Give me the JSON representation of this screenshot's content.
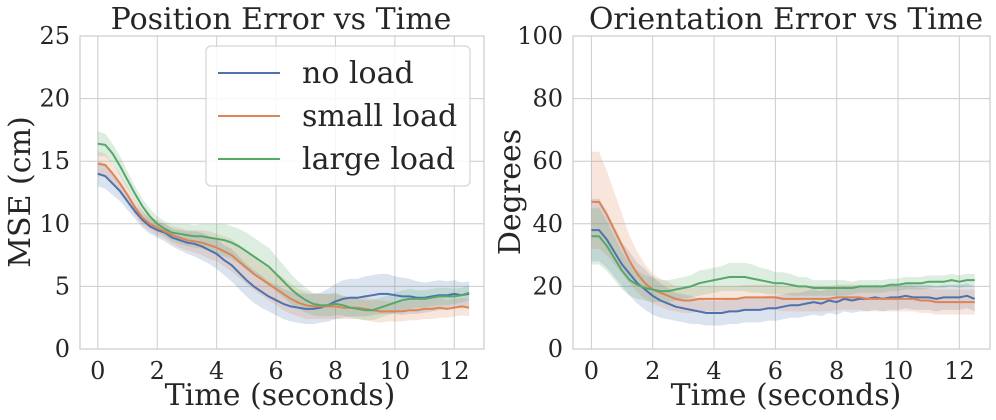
{
  "chart_data": [
    {
      "type": "line",
      "title": "Position Error vs Time",
      "xlabel": "Time (seconds)",
      "ylabel": "MSE (cm)",
      "xlim": [
        -0.6,
        13.0
      ],
      "ylim": [
        0,
        25
      ],
      "xticks": [
        0,
        2,
        4,
        6,
        8,
        10,
        12
      ],
      "yticks": [
        0,
        5,
        10,
        15,
        20,
        25
      ],
      "grid": true,
      "legend": "top-right",
      "x": [
        0,
        0.25,
        0.5,
        0.75,
        1,
        1.25,
        1.5,
        1.75,
        2,
        2.25,
        2.5,
        2.75,
        3,
        3.25,
        3.5,
        3.75,
        4,
        4.25,
        4.5,
        4.75,
        5,
        5.25,
        5.5,
        5.75,
        6,
        6.25,
        6.5,
        6.75,
        7,
        7.25,
        7.5,
        7.75,
        8,
        8.25,
        8.5,
        8.75,
        9,
        9.25,
        9.5,
        9.75,
        10,
        10.25,
        10.5,
        10.75,
        11,
        11.25,
        11.5,
        11.75,
        12,
        12.25,
        12.5
      ],
      "series": [
        {
          "name": "no load",
          "color": "#4c72b0",
          "values": [
            14.0,
            13.8,
            13.2,
            12.6,
            11.8,
            11.0,
            10.3,
            9.8,
            9.5,
            9.3,
            8.9,
            8.7,
            8.5,
            8.4,
            8.2,
            7.9,
            7.6,
            7.1,
            6.7,
            6.1,
            5.5,
            5.0,
            4.6,
            4.2,
            3.9,
            3.6,
            3.4,
            3.3,
            3.2,
            3.2,
            3.3,
            3.5,
            3.8,
            4.0,
            4.1,
            4.1,
            4.2,
            4.3,
            4.4,
            4.4,
            4.3,
            4.2,
            4.2,
            4.1,
            4.1,
            4.2,
            4.3,
            4.3,
            4.4,
            4.3,
            4.4
          ],
          "lower": [
            13.0,
            12.8,
            12.3,
            11.8,
            11.1,
            10.4,
            9.7,
            9.2,
            8.9,
            8.6,
            8.2,
            7.9,
            7.6,
            7.4,
            7.1,
            6.8,
            6.4,
            5.9,
            5.4,
            4.8,
            4.2,
            3.7,
            3.3,
            3.0,
            2.7,
            2.4,
            2.2,
            2.1,
            2.0,
            2.0,
            2.1,
            2.2,
            2.4,
            2.5,
            2.6,
            2.6,
            2.6,
            2.7,
            2.8,
            2.8,
            2.8,
            2.7,
            2.8,
            2.8,
            2.9,
            3.0,
            3.1,
            3.2,
            3.3,
            3.3,
            3.4
          ],
          "upper": [
            15.0,
            14.8,
            14.1,
            13.4,
            12.5,
            11.6,
            10.9,
            10.4,
            10.1,
            10.0,
            9.6,
            9.5,
            9.4,
            9.4,
            9.3,
            9.0,
            8.8,
            8.3,
            8.0,
            7.4,
            6.8,
            6.3,
            5.9,
            5.4,
            5.1,
            4.8,
            4.6,
            4.5,
            4.4,
            4.4,
            4.5,
            4.8,
            5.2,
            5.5,
            5.6,
            5.6,
            5.8,
            5.9,
            6.0,
            6.0,
            5.8,
            5.7,
            5.6,
            5.4,
            5.3,
            5.4,
            5.5,
            5.4,
            5.5,
            5.3,
            5.4
          ]
        },
        {
          "name": "small load",
          "color": "#dd8452",
          "values": [
            14.8,
            14.7,
            14.0,
            13.2,
            12.3,
            11.3,
            10.5,
            10.0,
            9.7,
            9.4,
            9.1,
            8.9,
            8.7,
            8.6,
            8.5,
            8.3,
            8.1,
            7.8,
            7.5,
            7.0,
            6.5,
            6.0,
            5.6,
            5.2,
            4.8,
            4.4,
            4.0,
            3.7,
            3.5,
            3.4,
            3.4,
            3.4,
            3.4,
            3.3,
            3.3,
            3.3,
            3.2,
            3.1,
            3.0,
            3.0,
            3.0,
            3.0,
            3.1,
            3.1,
            3.2,
            3.2,
            3.3,
            3.2,
            3.3,
            3.4,
            3.3
          ],
          "lower": [
            13.8,
            13.8,
            13.2,
            12.4,
            11.6,
            10.7,
            9.9,
            9.4,
            9.1,
            8.8,
            8.4,
            8.1,
            7.9,
            7.7,
            7.5,
            7.2,
            7.0,
            6.6,
            6.2,
            5.7,
            5.2,
            4.7,
            4.3,
            3.9,
            3.5,
            3.1,
            2.8,
            2.6,
            2.4,
            2.4,
            2.4,
            2.4,
            2.4,
            2.4,
            2.4,
            2.4,
            2.3,
            2.2,
            2.1,
            2.2,
            2.2,
            2.2,
            2.3,
            2.3,
            2.4,
            2.4,
            2.5,
            2.5,
            2.6,
            2.7,
            2.6
          ],
          "upper": [
            15.8,
            15.6,
            14.8,
            14.0,
            13.0,
            11.9,
            11.1,
            10.6,
            10.3,
            10.0,
            9.8,
            9.7,
            9.5,
            9.5,
            9.5,
            9.4,
            9.2,
            9.0,
            8.8,
            8.3,
            7.8,
            7.3,
            6.9,
            6.5,
            6.1,
            5.7,
            5.2,
            4.8,
            4.6,
            4.4,
            4.4,
            4.4,
            4.4,
            4.2,
            4.2,
            4.2,
            4.1,
            4.0,
            3.9,
            3.8,
            3.8,
            3.8,
            3.9,
            3.9,
            4.0,
            4.0,
            4.1,
            3.9,
            4.0,
            4.1,
            4.0
          ]
        },
        {
          "name": "large load",
          "color": "#55a868",
          "values": [
            16.4,
            16.3,
            15.6,
            14.6,
            13.5,
            12.4,
            11.4,
            10.6,
            10.0,
            9.6,
            9.3,
            9.2,
            9.1,
            9.0,
            9.0,
            8.9,
            8.8,
            8.7,
            8.5,
            8.2,
            7.8,
            7.4,
            7.0,
            6.6,
            6.0,
            5.4,
            4.8,
            4.3,
            3.9,
            3.6,
            3.5,
            3.5,
            3.6,
            3.5,
            3.3,
            3.2,
            3.1,
            3.1,
            3.3,
            3.5,
            3.7,
            3.9,
            4.0,
            4.0,
            4.0,
            4.1,
            4.2,
            4.2,
            4.2,
            4.3,
            4.5
          ],
          "lower": [
            15.4,
            15.4,
            14.8,
            13.8,
            12.8,
            11.8,
            10.8,
            10.0,
            9.4,
            9.0,
            8.6,
            8.4,
            8.2,
            8.1,
            8.0,
            7.8,
            7.6,
            7.4,
            7.2,
            6.8,
            6.3,
            5.9,
            5.5,
            5.1,
            4.6,
            4.1,
            3.6,
            3.2,
            2.9,
            2.7,
            2.6,
            2.6,
            2.7,
            2.7,
            2.5,
            2.4,
            2.3,
            2.3,
            2.5,
            2.7,
            2.9,
            3.1,
            3.2,
            3.3,
            3.3,
            3.4,
            3.5,
            3.5,
            3.6,
            3.7,
            3.9
          ],
          "upper": [
            17.4,
            17.2,
            16.4,
            15.4,
            14.2,
            13.0,
            12.0,
            11.2,
            10.6,
            10.2,
            10.0,
            10.0,
            10.0,
            9.9,
            10.0,
            10.0,
            10.0,
            10.0,
            9.8,
            9.6,
            9.3,
            8.9,
            8.5,
            8.1,
            7.4,
            6.7,
            6.0,
            5.4,
            4.9,
            4.5,
            4.4,
            4.4,
            4.5,
            4.3,
            4.1,
            4.0,
            3.9,
            3.9,
            4.1,
            4.3,
            4.5,
            4.7,
            4.8,
            4.7,
            4.7,
            4.8,
            4.9,
            4.9,
            4.8,
            4.9,
            5.1
          ]
        }
      ]
    },
    {
      "type": "line",
      "title": "Orientation Error vs Time",
      "xlabel": "Time (seconds)",
      "ylabel": "Degrees",
      "xlim": [
        -0.6,
        13.0
      ],
      "ylim": [
        0,
        100
      ],
      "xticks": [
        0,
        2,
        4,
        6,
        8,
        10,
        12
      ],
      "yticks": [
        0,
        20,
        40,
        60,
        80,
        100
      ],
      "grid": true,
      "x": [
        0,
        0.25,
        0.5,
        0.75,
        1,
        1.25,
        1.5,
        1.75,
        2,
        2.25,
        2.5,
        2.75,
        3,
        3.25,
        3.5,
        3.75,
        4,
        4.25,
        4.5,
        4.75,
        5,
        5.25,
        5.5,
        5.75,
        6,
        6.25,
        6.5,
        6.75,
        7,
        7.25,
        7.5,
        7.75,
        8,
        8.25,
        8.5,
        8.75,
        9,
        9.25,
        9.5,
        9.75,
        10,
        10.25,
        10.5,
        10.75,
        11,
        11.25,
        11.5,
        11.75,
        12,
        12.25,
        12.5
      ],
      "series": [
        {
          "name": "no load",
          "color": "#4c72b0",
          "values": [
            38,
            38,
            35,
            31,
            27,
            24,
            21,
            19,
            17,
            15.5,
            14.5,
            13.5,
            13,
            12.5,
            12,
            11.5,
            11.5,
            11.5,
            12,
            12,
            12.5,
            12.5,
            12.5,
            13,
            13,
            13.5,
            14,
            14,
            14.5,
            15,
            14.5,
            15.5,
            15,
            16,
            15.5,
            16,
            16,
            16.5,
            16,
            16.5,
            16.5,
            17,
            16.5,
            16.5,
            16.5,
            16,
            16.5,
            16.5,
            16.5,
            17,
            16
          ],
          "lower": [
            28,
            28,
            26,
            23,
            20,
            17,
            14.5,
            12.5,
            11,
            10,
            9.5,
            9,
            8.5,
            8,
            8,
            7.5,
            7.5,
            7.5,
            8,
            8,
            8.5,
            8.5,
            8.5,
            9,
            9,
            9.5,
            10,
            10,
            10.5,
            11,
            10.5,
            11.5,
            11,
            12,
            11.5,
            12,
            12,
            12.5,
            12,
            12.5,
            12.5,
            13,
            12.5,
            12.5,
            12.5,
            12,
            12.5,
            12.5,
            12.5,
            13,
            12
          ],
          "upper": [
            48,
            48,
            44,
            39,
            34,
            31,
            27.5,
            25.5,
            23,
            21,
            19.5,
            18,
            17.5,
            17,
            16,
            15.5,
            15.5,
            15.5,
            16,
            16,
            16.5,
            16.5,
            16.5,
            17,
            17,
            17.5,
            18,
            18,
            18.5,
            19,
            18.5,
            19.5,
            19,
            20,
            19.5,
            20,
            20,
            20.5,
            20,
            20.5,
            20.5,
            21,
            20.5,
            20.5,
            20.5,
            20,
            20.5,
            20.5,
            20.5,
            21,
            20
          ]
        },
        {
          "name": "small load",
          "color": "#dd8452",
          "values": [
            47,
            47,
            43,
            38,
            33,
            28,
            24,
            21,
            19,
            18,
            17,
            16,
            15.5,
            15.5,
            16,
            16,
            16,
            16,
            16,
            16,
            16.5,
            16.5,
            16.5,
            16.5,
            16.5,
            16,
            16,
            16,
            16,
            16,
            16,
            16,
            16.5,
            16.5,
            16.5,
            16.5,
            16,
            16,
            16,
            16,
            16,
            16,
            16,
            15.5,
            15.5,
            15,
            15,
            15,
            15,
            15,
            15
          ],
          "lower": [
            32,
            32,
            30,
            27,
            24,
            21,
            18,
            16,
            14.5,
            13.5,
            12.5,
            12,
            11.5,
            11.5,
            12,
            12,
            12,
            12,
            12,
            12,
            12.5,
            12.5,
            12.5,
            12.5,
            12.5,
            12,
            12,
            12,
            12,
            12,
            12,
            12,
            12.5,
            12.5,
            12.5,
            12.5,
            12,
            12,
            12,
            12,
            12,
            12,
            12,
            11.5,
            11.5,
            11,
            11,
            11,
            11,
            11,
            11
          ],
          "upper": [
            63,
            63,
            57,
            50,
            43,
            36,
            31,
            27,
            24,
            22.5,
            21.5,
            20,
            19.5,
            19.5,
            20,
            20,
            20,
            20,
            20,
            20,
            20.5,
            20.5,
            20.5,
            20.5,
            20.5,
            20,
            20,
            20,
            20,
            20,
            20,
            20,
            20.5,
            20.5,
            20.5,
            20.5,
            20,
            20,
            20,
            20,
            20,
            20,
            20,
            19.5,
            19.5,
            19,
            19,
            19,
            19,
            19,
            19
          ]
        },
        {
          "name": "large load",
          "color": "#55a868",
          "values": [
            36,
            36,
            33,
            29,
            25,
            22,
            20.5,
            19.5,
            19,
            18.5,
            18.5,
            19,
            19.5,
            20,
            21,
            21.5,
            22,
            22.5,
            23,
            23,
            23,
            22.5,
            22,
            21.5,
            21,
            21,
            20.5,
            20,
            20,
            19.5,
            19.5,
            19.5,
            19.5,
            19.5,
            19.5,
            20,
            20,
            20,
            20,
            20.5,
            20.5,
            21,
            21,
            21,
            21.5,
            21.5,
            21.5,
            22,
            21.5,
            22,
            22
          ],
          "lower": [
            27,
            27,
            25,
            22,
            19,
            17,
            16,
            15.5,
            15,
            15,
            15,
            15.5,
            16,
            16.5,
            17,
            17.5,
            18,
            18.5,
            18.5,
            18.5,
            18.5,
            18,
            18,
            17.5,
            17.5,
            17.5,
            17,
            17,
            17,
            17,
            17,
            17,
            17,
            17,
            17.5,
            18,
            18,
            18,
            18,
            18.5,
            18.5,
            19,
            19,
            19,
            19.5,
            19.5,
            19.5,
            20,
            19.5,
            20,
            20
          ],
          "upper": [
            45,
            45,
            41,
            36,
            31,
            27,
            25,
            23.5,
            23,
            22,
            22,
            22.5,
            23,
            23.5,
            25,
            25.5,
            26,
            26.5,
            27.5,
            27.5,
            27.5,
            27,
            26,
            25.5,
            24.5,
            24.5,
            24,
            23,
            23,
            22,
            22,
            22,
            22,
            22,
            21.5,
            22,
            22,
            22,
            22,
            22.5,
            22.5,
            23,
            23,
            23,
            23.5,
            23.5,
            23.5,
            24,
            23.5,
            24,
            24
          ]
        }
      ]
    }
  ]
}
